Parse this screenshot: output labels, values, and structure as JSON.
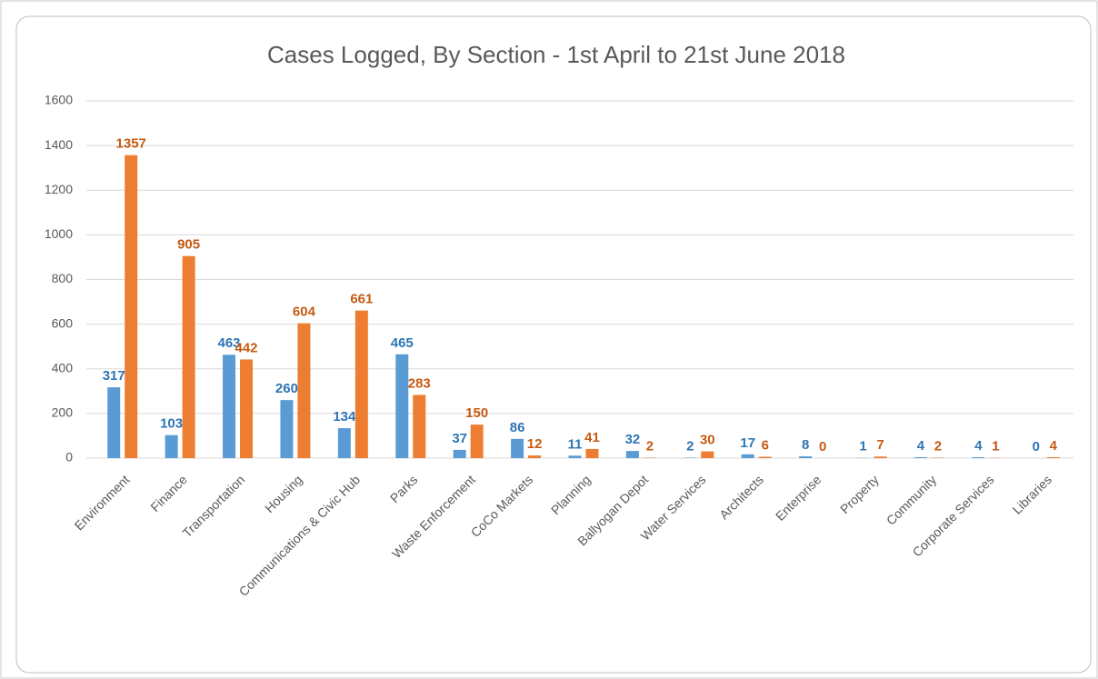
{
  "chart_data": {
    "type": "bar",
    "title": "Cases Logged, By Section - 1st April to 21st June 2018",
    "categories": [
      "Environment",
      "Finance",
      "Transportation",
      "Housing",
      "Communications & Civic Hub",
      "Parks",
      "Waste Enforcement",
      "CoCo Markets",
      "Planning",
      "Ballyogan Depot",
      "Water Services",
      "Architects",
      "Enterprise",
      "Property",
      "Community",
      "Corporate Services",
      "Libraries"
    ],
    "series": [
      {
        "color": "#5b9bd5",
        "label_color": "#2e75b6",
        "values": [
          317,
          103,
          463,
          260,
          134,
          465,
          37,
          86,
          11,
          32,
          2,
          17,
          8,
          1,
          4,
          4,
          0
        ]
      },
      {
        "color": "#ed7d31",
        "label_color": "#c55a11",
        "values": [
          1357,
          905,
          442,
          604,
          661,
          283,
          150,
          12,
          41,
          2,
          30,
          6,
          0,
          7,
          2,
          1,
          4
        ]
      }
    ],
    "ylim": [
      0,
      1600
    ],
    "yticks": [
      0,
      200,
      400,
      600,
      800,
      1000,
      1200,
      1400,
      1600
    ],
    "grid": true
  }
}
